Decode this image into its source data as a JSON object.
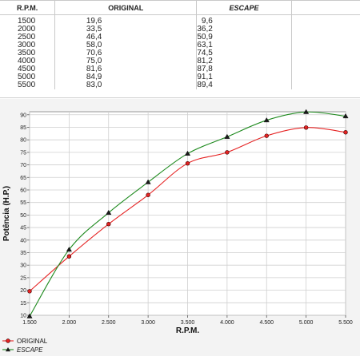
{
  "table": {
    "headers": {
      "rpm": "R.P.M.",
      "original": "ORIGINAL",
      "escape": "ESCAPE"
    },
    "rows": [
      {
        "rpm": "1500",
        "original": "19,6",
        "escape": "9,6"
      },
      {
        "rpm": "2000",
        "original": "33,5",
        "escape": "36,2"
      },
      {
        "rpm": "2500",
        "original": "46,4",
        "escape": "50,9"
      },
      {
        "rpm": "3000",
        "original": "58,0",
        "escape": "63,1"
      },
      {
        "rpm": "3500",
        "original": "70,6",
        "escape": "74,5"
      },
      {
        "rpm": "4000",
        "original": "75,0",
        "escape": "81,2"
      },
      {
        "rpm": "4500",
        "original": "81,6",
        "escape": "87,8"
      },
      {
        "rpm": "5000",
        "original": "84,9",
        "escape": "91,1"
      },
      {
        "rpm": "5500",
        "original": "83,0",
        "escape": "89,4"
      }
    ]
  },
  "chart_data": {
    "type": "line",
    "xlabel": "R.P.M.",
    "ylabel": "Potência (H.P.)",
    "xlim": [
      1500,
      5500
    ],
    "ylim": [
      10,
      90
    ],
    "x_ticks": [
      1500,
      2000,
      2500,
      3000,
      3500,
      4000,
      4500,
      5000,
      5500
    ],
    "x_tick_labels": [
      "1.500",
      "2.000",
      "2.500",
      "3.000",
      "3.500",
      "4.000",
      "4.500",
      "5.000",
      "5.500"
    ],
    "y_ticks": [
      10,
      15,
      20,
      25,
      30,
      35,
      40,
      45,
      50,
      55,
      60,
      65,
      70,
      75,
      80,
      85,
      90
    ],
    "grid": true,
    "legend_position": "bottom-left",
    "x": [
      1500,
      2000,
      2500,
      3000,
      3500,
      4000,
      4500,
      5000,
      5500
    ],
    "series": [
      {
        "name": "ORIGINAL",
        "values": [
          19.6,
          33.5,
          46.4,
          58.0,
          70.6,
          75.0,
          81.6,
          84.9,
          83.0
        ],
        "color": "#e52222",
        "marker": "circle"
      },
      {
        "name": "ESCAPE",
        "values": [
          9.6,
          36.2,
          50.9,
          63.1,
          74.5,
          81.2,
          87.8,
          91.1,
          89.4
        ],
        "color": "#1e8a1e",
        "marker": "triangle"
      }
    ]
  },
  "colors": {
    "panel_bg": "#f3f3f3",
    "plot_bg": "#ffffff",
    "grid": "#cfcfcf"
  }
}
